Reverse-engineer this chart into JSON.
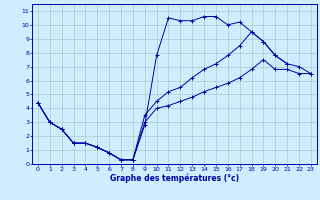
{
  "xlabel": "Graphe des températures (°c)",
  "background_color": "#cceeff",
  "grid_color": "#aacccc",
  "line_color": "#0000aa",
  "xlim": [
    -0.5,
    23.5
  ],
  "ylim": [
    0,
    11.5
  ],
  "xticks": [
    0,
    1,
    2,
    3,
    4,
    5,
    6,
    7,
    8,
    9,
    10,
    11,
    12,
    13,
    14,
    15,
    16,
    17,
    18,
    19,
    20,
    21,
    22,
    23
  ],
  "yticks": [
    0,
    1,
    2,
    3,
    4,
    5,
    6,
    7,
    8,
    9,
    10,
    11
  ],
  "line1_x": [
    0,
    1,
    2,
    3,
    4,
    5,
    6,
    7,
    8,
    9,
    10,
    11,
    12,
    13,
    14,
    15,
    16,
    17,
    18,
    19,
    20,
    21
  ],
  "line1_y": [
    4.4,
    3.0,
    2.5,
    1.5,
    1.5,
    1.2,
    0.8,
    0.3,
    0.3,
    2.8,
    7.8,
    10.5,
    10.3,
    10.3,
    10.6,
    10.6,
    10.0,
    10.2,
    9.5,
    8.8,
    7.8,
    7.2
  ],
  "line2_x": [
    0,
    1,
    2,
    3,
    4,
    5,
    6,
    7,
    8,
    9,
    10,
    11,
    12,
    13,
    14,
    15,
    16,
    17,
    18,
    19,
    20,
    21,
    22,
    23
  ],
  "line2_y": [
    4.4,
    3.0,
    2.5,
    1.5,
    1.5,
    1.2,
    0.8,
    0.3,
    0.3,
    3.5,
    4.5,
    5.2,
    5.5,
    6.2,
    6.8,
    7.2,
    7.8,
    8.5,
    9.5,
    8.8,
    7.8,
    7.2,
    7.0,
    6.5
  ],
  "line3_x": [
    0,
    1,
    2,
    3,
    4,
    5,
    6,
    7,
    8,
    9,
    10,
    11,
    12,
    13,
    14,
    15,
    16,
    17,
    18,
    19,
    20,
    21,
    22,
    23
  ],
  "line3_y": [
    4.4,
    3.0,
    2.5,
    1.5,
    1.5,
    1.2,
    0.8,
    0.3,
    0.3,
    3.0,
    4.0,
    4.2,
    4.5,
    4.8,
    5.2,
    5.5,
    5.8,
    6.2,
    6.8,
    7.5,
    6.8,
    6.8,
    6.5,
    6.5
  ]
}
